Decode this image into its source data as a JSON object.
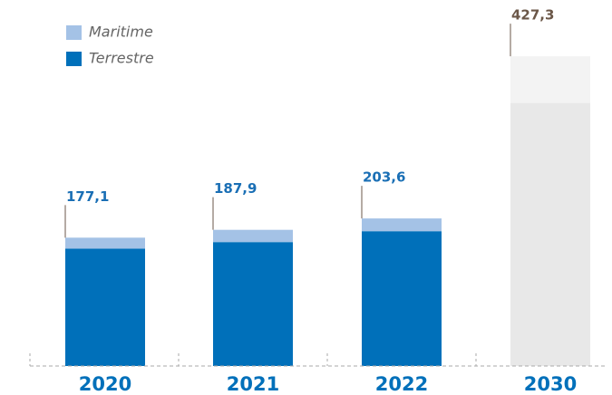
{
  "chart_data": {
    "type": "stacked-bar",
    "categories": [
      "2020",
      "2021",
      "2022",
      "2030"
    ],
    "series": [
      {
        "name": "Terrestre",
        "color": "#0070ba",
        "colors": [
          "#0070ba",
          "#0070ba",
          "#0070ba",
          "#e8e8e8"
        ],
        "values": [
          162,
          171,
          186,
          363
        ]
      },
      {
        "name": "Maritime",
        "color": "#a4c2e6",
        "colors": [
          "#a4c2e6",
          "#a4c2e6",
          "#a4c2e6",
          "#f3f3f3"
        ],
        "values": [
          15.1,
          16.9,
          17.6,
          64.3
        ]
      }
    ],
    "totals": [
      177.1,
      187.9,
      203.6,
      427.3
    ],
    "total_labels": [
      "177,1",
      "187,9",
      "203,6",
      "427,3"
    ],
    "total_label_colors": [
      "#1a6fb5",
      "#1a6fb5",
      "#1a6fb5",
      "#6b5748"
    ],
    "ylim": [
      0,
      430
    ]
  }
}
